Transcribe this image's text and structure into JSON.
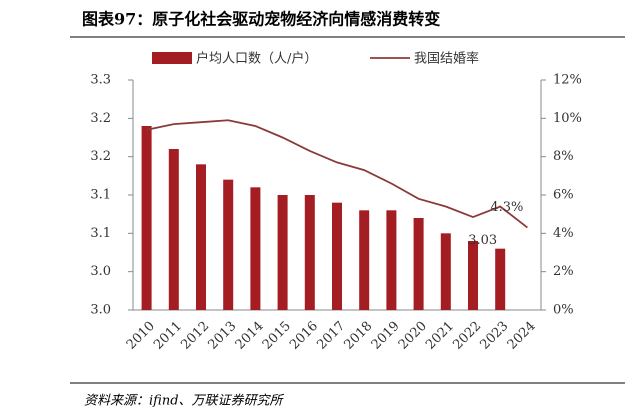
{
  "title": "图表97：原子化社会驱动宠物经济向情感消费转变",
  "source": "资料来源：ifind、万联证券研究所",
  "chart_data": {
    "type": "bar_line",
    "categories": [
      "2010",
      "2011",
      "2012",
      "2013",
      "2014",
      "2015",
      "2016",
      "2017",
      "2018",
      "2019",
      "2020",
      "2021",
      "2022",
      "2023",
      "2024"
    ],
    "series": [
      {
        "name": "户均人口数（人/户）",
        "type": "bar",
        "color": "#a31d22",
        "values": [
          3.24,
          3.21,
          3.19,
          3.17,
          3.16,
          3.15,
          3.15,
          3.14,
          3.13,
          3.13,
          3.12,
          3.1,
          3.09,
          3.08,
          null
        ]
      },
      {
        "name": "我国结婚率",
        "type": "line",
        "axis": "y2",
        "color": "#8b3a3a",
        "values": [
          9.4,
          9.7,
          9.8,
          9.9,
          9.6,
          9.0,
          8.3,
          7.7,
          7.3,
          6.6,
          5.8,
          5.4,
          4.85,
          5.4,
          4.3
        ],
        "value_labels": [
          null,
          null,
          null,
          null,
          null,
          null,
          null,
          null,
          null,
          null,
          null,
          null,
          null,
          null,
          "4.3%"
        ]
      }
    ],
    "annotations": [
      "3.03"
    ],
    "ylim": [
      3.0,
      3.3
    ],
    "yticks": [
      {
        "value": 3.0,
        "label": "3.0"
      },
      {
        "value": 3.05,
        "label": "3.0"
      },
      {
        "value": 3.1,
        "label": "3.1"
      },
      {
        "value": 3.15,
        "label": "3.1"
      },
      {
        "value": 3.2,
        "label": "3.2"
      },
      {
        "value": 3.25,
        "label": "3.2"
      },
      {
        "value": 3.3,
        "label": "3.3"
      }
    ],
    "y2lim": [
      0,
      12
    ],
    "y2ticks": [
      {
        "value": 0,
        "label": "0%"
      },
      {
        "value": 2,
        "label": "2%"
      },
      {
        "value": 4,
        "label": "4%"
      },
      {
        "value": 6,
        "label": "6%"
      },
      {
        "value": 8,
        "label": "8%"
      },
      {
        "value": 10,
        "label": "10%"
      },
      {
        "value": 12,
        "label": "12%"
      }
    ]
  }
}
